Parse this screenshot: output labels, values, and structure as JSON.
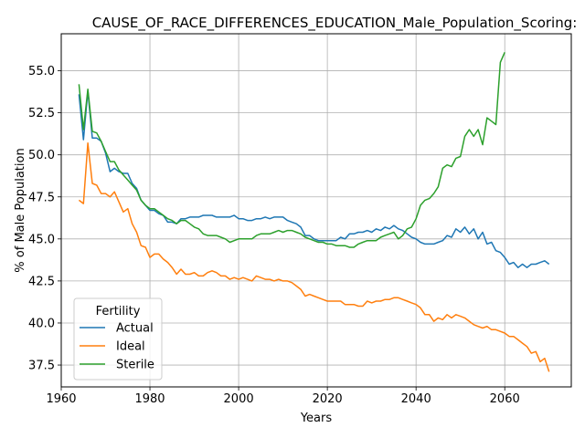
{
  "chart_data": {
    "type": "line",
    "title": "CAUSE_OF_RACE_DIFFERENCES_EDUCATION_Male_Population_Scoring:",
    "xlabel": "Years",
    "ylabel": "% of Male Population",
    "xlim": [
      1960,
      2075
    ],
    "ylim": [
      36.2,
      57.2
    ],
    "xticks": [
      1960,
      1980,
      2000,
      2020,
      2040,
      2060
    ],
    "yticks": [
      37.5,
      40.0,
      42.5,
      45.0,
      47.5,
      50.0,
      52.5,
      55.0
    ],
    "grid": true,
    "legend": {
      "title": "Fertility",
      "position": "lower-left"
    },
    "series": [
      {
        "name": "Actual",
        "color": "#1f77b4",
        "points": [
          [
            1964,
            53.6
          ],
          [
            1965,
            50.9
          ],
          [
            1966,
            53.8
          ],
          [
            1967,
            51.0
          ],
          [
            1968,
            51.0
          ],
          [
            1969,
            50.8
          ],
          [
            1970,
            50.1
          ],
          [
            1971,
            49.0
          ],
          [
            1972,
            49.2
          ],
          [
            1973,
            49.0
          ],
          [
            1974,
            48.9
          ],
          [
            1975,
            48.9
          ],
          [
            1976,
            48.3
          ],
          [
            1977,
            48.0
          ],
          [
            1978,
            47.3
          ],
          [
            1979,
            47.0
          ],
          [
            1980,
            46.7
          ],
          [
            1981,
            46.7
          ],
          [
            1982,
            46.5
          ],
          [
            1983,
            46.4
          ],
          [
            1984,
            46.0
          ],
          [
            1985,
            46.0
          ],
          [
            1986,
            45.9
          ],
          [
            1987,
            46.2
          ],
          [
            1988,
            46.2
          ],
          [
            1989,
            46.3
          ],
          [
            1990,
            46.3
          ],
          [
            1991,
            46.3
          ],
          [
            1992,
            46.4
          ],
          [
            1993,
            46.4
          ],
          [
            1994,
            46.4
          ],
          [
            1995,
            46.3
          ],
          [
            1996,
            46.3
          ],
          [
            1997,
            46.3
          ],
          [
            1998,
            46.3
          ],
          [
            1999,
            46.4
          ],
          [
            2000,
            46.2
          ],
          [
            2001,
            46.2
          ],
          [
            2002,
            46.1
          ],
          [
            2003,
            46.1
          ],
          [
            2004,
            46.2
          ],
          [
            2005,
            46.2
          ],
          [
            2006,
            46.3
          ],
          [
            2007,
            46.2
          ],
          [
            2008,
            46.3
          ],
          [
            2009,
            46.3
          ],
          [
            2010,
            46.3
          ],
          [
            2011,
            46.1
          ],
          [
            2012,
            46.0
          ],
          [
            2013,
            45.9
          ],
          [
            2014,
            45.7
          ],
          [
            2015,
            45.2
          ],
          [
            2016,
            45.2
          ],
          [
            2017,
            45.0
          ],
          [
            2018,
            44.9
          ],
          [
            2019,
            44.9
          ],
          [
            2020,
            44.9
          ],
          [
            2021,
            44.9
          ],
          [
            2022,
            44.9
          ],
          [
            2023,
            45.1
          ],
          [
            2024,
            45.0
          ],
          [
            2025,
            45.3
          ],
          [
            2026,
            45.3
          ],
          [
            2027,
            45.4
          ],
          [
            2028,
            45.4
          ],
          [
            2029,
            45.5
          ],
          [
            2030,
            45.4
          ],
          [
            2031,
            45.6
          ],
          [
            2032,
            45.5
          ],
          [
            2033,
            45.7
          ],
          [
            2034,
            45.6
          ],
          [
            2035,
            45.8
          ],
          [
            2036,
            45.6
          ],
          [
            2037,
            45.5
          ],
          [
            2038,
            45.3
          ],
          [
            2039,
            45.1
          ],
          [
            2040,
            45.0
          ],
          [
            2041,
            44.8
          ],
          [
            2042,
            44.7
          ],
          [
            2043,
            44.7
          ],
          [
            2044,
            44.7
          ],
          [
            2045,
            44.8
          ],
          [
            2046,
            44.9
          ],
          [
            2047,
            45.2
          ],
          [
            2048,
            45.1
          ],
          [
            2049,
            45.6
          ],
          [
            2050,
            45.4
          ],
          [
            2051,
            45.7
          ],
          [
            2052,
            45.3
          ],
          [
            2053,
            45.6
          ],
          [
            2054,
            45.0
          ],
          [
            2055,
            45.4
          ],
          [
            2056,
            44.7
          ],
          [
            2057,
            44.8
          ],
          [
            2058,
            44.3
          ],
          [
            2059,
            44.2
          ],
          [
            2060,
            43.9
          ],
          [
            2061,
            43.5
          ],
          [
            2062,
            43.6
          ],
          [
            2063,
            43.3
          ],
          [
            2064,
            43.5
          ],
          [
            2065,
            43.3
          ],
          [
            2066,
            43.5
          ],
          [
            2067,
            43.5
          ],
          [
            2068,
            43.6
          ],
          [
            2069,
            43.7
          ],
          [
            2070,
            43.5
          ]
        ]
      },
      {
        "name": "Ideal",
        "color": "#ff7f0e",
        "points": [
          [
            1964,
            47.3
          ],
          [
            1965,
            47.1
          ],
          [
            1966,
            50.7
          ],
          [
            1967,
            48.3
          ],
          [
            1968,
            48.2
          ],
          [
            1969,
            47.7
          ],
          [
            1970,
            47.7
          ],
          [
            1971,
            47.5
          ],
          [
            1972,
            47.8
          ],
          [
            1973,
            47.2
          ],
          [
            1974,
            46.6
          ],
          [
            1975,
            46.8
          ],
          [
            1976,
            45.9
          ],
          [
            1977,
            45.4
          ],
          [
            1978,
            44.6
          ],
          [
            1979,
            44.5
          ],
          [
            1980,
            43.9
          ],
          [
            1981,
            44.1
          ],
          [
            1982,
            44.1
          ],
          [
            1983,
            43.8
          ],
          [
            1984,
            43.6
          ],
          [
            1985,
            43.3
          ],
          [
            1986,
            42.9
          ],
          [
            1987,
            43.2
          ],
          [
            1988,
            42.9
          ],
          [
            1989,
            42.9
          ],
          [
            1990,
            43.0
          ],
          [
            1991,
            42.8
          ],
          [
            1992,
            42.8
          ],
          [
            1993,
            43.0
          ],
          [
            1994,
            43.1
          ],
          [
            1995,
            43.0
          ],
          [
            1996,
            42.8
          ],
          [
            1997,
            42.8
          ],
          [
            1998,
            42.6
          ],
          [
            1999,
            42.7
          ],
          [
            2000,
            42.6
          ],
          [
            2001,
            42.7
          ],
          [
            2002,
            42.6
          ],
          [
            2003,
            42.5
          ],
          [
            2004,
            42.8
          ],
          [
            2005,
            42.7
          ],
          [
            2006,
            42.6
          ],
          [
            2007,
            42.6
          ],
          [
            2008,
            42.5
          ],
          [
            2009,
            42.6
          ],
          [
            2010,
            42.5
          ],
          [
            2011,
            42.5
          ],
          [
            2012,
            42.4
          ],
          [
            2013,
            42.2
          ],
          [
            2014,
            42.0
          ],
          [
            2015,
            41.6
          ],
          [
            2016,
            41.7
          ],
          [
            2017,
            41.6
          ],
          [
            2018,
            41.5
          ],
          [
            2019,
            41.4
          ],
          [
            2020,
            41.3
          ],
          [
            2021,
            41.3
          ],
          [
            2022,
            41.3
          ],
          [
            2023,
            41.3
          ],
          [
            2024,
            41.1
          ],
          [
            2025,
            41.1
          ],
          [
            2026,
            41.1
          ],
          [
            2027,
            41.0
          ],
          [
            2028,
            41.0
          ],
          [
            2029,
            41.3
          ],
          [
            2030,
            41.2
          ],
          [
            2031,
            41.3
          ],
          [
            2032,
            41.3
          ],
          [
            2033,
            41.4
          ],
          [
            2034,
            41.4
          ],
          [
            2035,
            41.5
          ],
          [
            2036,
            41.5
          ],
          [
            2037,
            41.4
          ],
          [
            2038,
            41.3
          ],
          [
            2039,
            41.2
          ],
          [
            2040,
            41.1
          ],
          [
            2041,
            40.9
          ],
          [
            2042,
            40.5
          ],
          [
            2043,
            40.5
          ],
          [
            2044,
            40.1
          ],
          [
            2045,
            40.3
          ],
          [
            2046,
            40.2
          ],
          [
            2047,
            40.5
          ],
          [
            2048,
            40.3
          ],
          [
            2049,
            40.5
          ],
          [
            2050,
            40.4
          ],
          [
            2051,
            40.3
          ],
          [
            2052,
            40.1
          ],
          [
            2053,
            39.9
          ],
          [
            2054,
            39.8
          ],
          [
            2055,
            39.7
          ],
          [
            2056,
            39.8
          ],
          [
            2057,
            39.6
          ],
          [
            2058,
            39.6
          ],
          [
            2059,
            39.5
          ],
          [
            2060,
            39.4
          ],
          [
            2061,
            39.2
          ],
          [
            2062,
            39.2
          ],
          [
            2063,
            39.0
          ],
          [
            2064,
            38.8
          ],
          [
            2065,
            38.6
          ],
          [
            2066,
            38.2
          ],
          [
            2067,
            38.3
          ],
          [
            2068,
            37.7
          ],
          [
            2069,
            37.9
          ],
          [
            2070,
            37.1
          ]
        ]
      },
      {
        "name": "Sterile",
        "color": "#2ca02c",
        "points": [
          [
            1964,
            54.2
          ],
          [
            1965,
            51.5
          ],
          [
            1966,
            53.9
          ],
          [
            1967,
            51.4
          ],
          [
            1968,
            51.3
          ],
          [
            1969,
            50.8
          ],
          [
            1970,
            50.2
          ],
          [
            1971,
            49.6
          ],
          [
            1972,
            49.6
          ],
          [
            1973,
            49.1
          ],
          [
            1974,
            48.8
          ],
          [
            1975,
            48.5
          ],
          [
            1976,
            48.2
          ],
          [
            1977,
            47.9
          ],
          [
            1978,
            47.3
          ],
          [
            1979,
            47.0
          ],
          [
            1980,
            46.8
          ],
          [
            1981,
            46.8
          ],
          [
            1982,
            46.6
          ],
          [
            1983,
            46.4
          ],
          [
            1984,
            46.2
          ],
          [
            1985,
            46.1
          ],
          [
            1986,
            45.9
          ],
          [
            1987,
            46.1
          ],
          [
            1988,
            46.1
          ],
          [
            1989,
            45.9
          ],
          [
            1990,
            45.7
          ],
          [
            1991,
            45.6
          ],
          [
            1992,
            45.3
          ],
          [
            1993,
            45.2
          ],
          [
            1994,
            45.2
          ],
          [
            1995,
            45.2
          ],
          [
            1996,
            45.1
          ],
          [
            1997,
            45.0
          ],
          [
            1998,
            44.8
          ],
          [
            1999,
            44.9
          ],
          [
            2000,
            45.0
          ],
          [
            2001,
            45.0
          ],
          [
            2002,
            45.0
          ],
          [
            2003,
            45.0
          ],
          [
            2004,
            45.2
          ],
          [
            2005,
            45.3
          ],
          [
            2006,
            45.3
          ],
          [
            2007,
            45.3
          ],
          [
            2008,
            45.4
          ],
          [
            2009,
            45.5
          ],
          [
            2010,
            45.4
          ],
          [
            2011,
            45.5
          ],
          [
            2012,
            45.5
          ],
          [
            2013,
            45.4
          ],
          [
            2014,
            45.3
          ],
          [
            2015,
            45.1
          ],
          [
            2016,
            45.0
          ],
          [
            2017,
            44.9
          ],
          [
            2018,
            44.8
          ],
          [
            2019,
            44.8
          ],
          [
            2020,
            44.7
          ],
          [
            2021,
            44.7
          ],
          [
            2022,
            44.6
          ],
          [
            2023,
            44.6
          ],
          [
            2024,
            44.6
          ],
          [
            2025,
            44.5
          ],
          [
            2026,
            44.5
          ],
          [
            2027,
            44.7
          ],
          [
            2028,
            44.8
          ],
          [
            2029,
            44.9
          ],
          [
            2030,
            44.9
          ],
          [
            2031,
            44.9
          ],
          [
            2032,
            45.1
          ],
          [
            2033,
            45.2
          ],
          [
            2034,
            45.3
          ],
          [
            2035,
            45.4
          ],
          [
            2036,
            45.0
          ],
          [
            2037,
            45.2
          ],
          [
            2038,
            45.6
          ],
          [
            2039,
            45.7
          ],
          [
            2040,
            46.2
          ],
          [
            2041,
            47.0
          ],
          [
            2042,
            47.3
          ],
          [
            2043,
            47.4
          ],
          [
            2044,
            47.7
          ],
          [
            2045,
            48.1
          ],
          [
            2046,
            49.2
          ],
          [
            2047,
            49.4
          ],
          [
            2048,
            49.3
          ],
          [
            2049,
            49.8
          ],
          [
            2050,
            49.9
          ],
          [
            2051,
            51.1
          ],
          [
            2052,
            51.5
          ],
          [
            2053,
            51.1
          ],
          [
            2054,
            51.5
          ],
          [
            2055,
            50.6
          ],
          [
            2056,
            52.2
          ],
          [
            2057,
            52.0
          ],
          [
            2058,
            51.8
          ],
          [
            2059,
            55.5
          ],
          [
            2060,
            56.1
          ]
        ]
      }
    ]
  }
}
